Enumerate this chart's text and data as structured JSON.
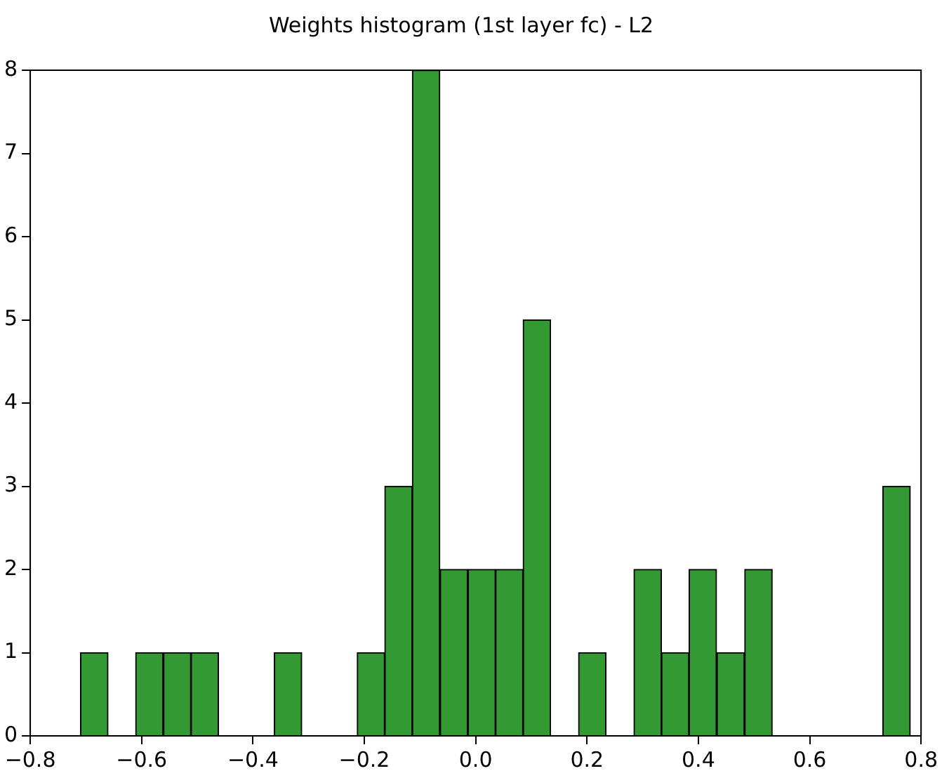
{
  "chart_data": {
    "type": "histogram",
    "title": "Weights histogram (1st layer fc) - L2",
    "bins": [
      -0.71,
      -0.66,
      -0.611,
      -0.561,
      -0.511,
      -0.462,
      -0.412,
      -0.362,
      -0.312,
      -0.263,
      -0.213,
      -0.163,
      -0.114,
      -0.064,
      -0.014,
      0.036,
      0.085,
      0.135,
      0.185,
      0.234,
      0.284,
      0.334,
      0.383,
      0.433,
      0.483,
      0.533,
      0.582,
      0.632,
      0.682,
      0.731,
      0.781
    ],
    "values": [
      1,
      0,
      1,
      1,
      1,
      0,
      0,
      1,
      0,
      0,
      1,
      3,
      8,
      2,
      2,
      2,
      5,
      0,
      1,
      0,
      2,
      1,
      2,
      1,
      2,
      0,
      0,
      0,
      0,
      3
    ],
    "color": "#339933",
    "xlim": [
      -0.8,
      0.8
    ],
    "xticks": [
      {
        "value": -0.8,
        "label": "−0.8"
      },
      {
        "value": -0.6,
        "label": "−0.6"
      },
      {
        "value": -0.4,
        "label": "−0.4"
      },
      {
        "value": -0.2,
        "label": "−0.2"
      },
      {
        "value": 0,
        "label": "0.0"
      },
      {
        "value": 0.2,
        "label": "0.2"
      },
      {
        "value": 0.4,
        "label": "0.4"
      },
      {
        "value": 0.6,
        "label": "0.6"
      },
      {
        "value": 0.8,
        "label": "0.8"
      }
    ],
    "ylim": [
      0,
      8
    ],
    "yticks": [
      0,
      1,
      2,
      3,
      4,
      5,
      6,
      7,
      8
    ],
    "grid": false,
    "legend": false
  }
}
